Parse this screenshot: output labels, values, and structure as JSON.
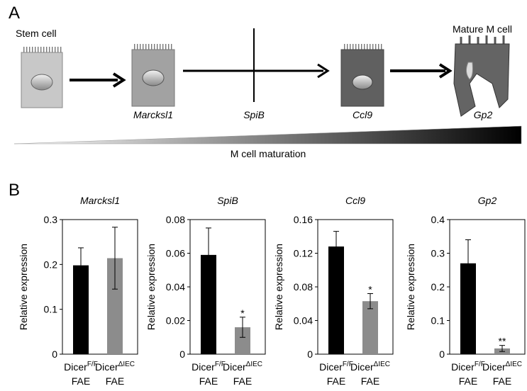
{
  "panel_a": {
    "label": "A",
    "start_label": "Stem cell",
    "end_label": "Mature M cell",
    "markers": [
      "Marcksl1",
      "SpiB",
      "Ccl9",
      "Gp2"
    ],
    "gradient_label": "M cell maturation"
  },
  "panel_b_label": "B",
  "chart_data": [
    {
      "type": "bar",
      "title": "Marcksl1",
      "y_label": "Relative expression",
      "categories": [
        {
          "base": "Dicer",
          "sup": "F/F",
          "line2": "FAE"
        },
        {
          "base": "Dicer",
          "sup": "ΔIEC",
          "line2": "FAE"
        }
      ],
      "values": [
        0.198,
        0.214
      ],
      "errors": [
        0.039,
        0.069
      ],
      "colors": [
        "#000000",
        "#8c8c8c"
      ],
      "ylim": [
        0,
        0.3
      ],
      "yticks": [
        0,
        0.1,
        0.2,
        0.3
      ]
    },
    {
      "type": "bar",
      "title": "SpiB",
      "y_label": "Relative expression",
      "categories": [
        {
          "base": "Dicer",
          "sup": "F/F",
          "line2": "FAE"
        },
        {
          "base": "Dicer",
          "sup": "ΔIEC",
          "line2": "FAE"
        }
      ],
      "values": [
        0.059,
        0.016
      ],
      "errors": [
        0.016,
        0.006
      ],
      "colors": [
        "#000000",
        "#8c8c8c"
      ],
      "annotations": [
        {
          "index": 1,
          "text": "*"
        }
      ],
      "ylim": [
        0,
        0.08
      ],
      "yticks": [
        0,
        0.02,
        0.04,
        0.06,
        0.08
      ]
    },
    {
      "type": "bar",
      "title": "Ccl9",
      "y_label": "Relative expression",
      "categories": [
        {
          "base": "Dicer",
          "sup": "F/F",
          "line2": "FAE"
        },
        {
          "base": "Dicer",
          "sup": "ΔIEC",
          "line2": "FAE"
        }
      ],
      "values": [
        0.128,
        0.063
      ],
      "errors": [
        0.018,
        0.009
      ],
      "colors": [
        "#000000",
        "#8c8c8c"
      ],
      "annotations": [
        {
          "index": 1,
          "text": "*"
        }
      ],
      "ylim": [
        0,
        0.16
      ],
      "yticks": [
        0,
        0.04,
        0.08,
        0.12,
        0.16
      ]
    },
    {
      "type": "bar",
      "title": "Gp2",
      "y_label": "Relative expression",
      "categories": [
        {
          "base": "Dicer",
          "sup": "F/F",
          "line2": "FAE"
        },
        {
          "base": "Dicer",
          "sup": "ΔIEC",
          "line2": "FAE"
        }
      ],
      "values": [
        0.27,
        0.017
      ],
      "errors": [
        0.07,
        0.009
      ],
      "colors": [
        "#000000",
        "#8c8c8c"
      ],
      "annotations": [
        {
          "index": 1,
          "text": "**"
        }
      ],
      "ylim": [
        0,
        0.4
      ],
      "yticks": [
        0,
        0.1,
        0.2,
        0.3,
        0.4
      ]
    }
  ]
}
